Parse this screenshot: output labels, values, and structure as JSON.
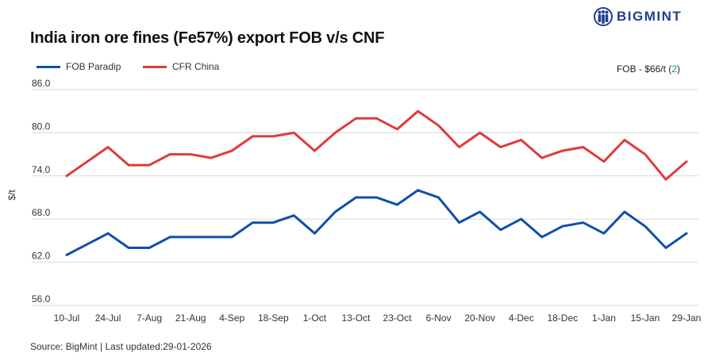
{
  "header": {
    "title": "India iron ore fines (Fe57%) export FOB v/s CNF",
    "brand": "BIGMINT"
  },
  "fob_note": {
    "prefix": "FOB - $66/t (",
    "change": "2",
    "suffix": ")"
  },
  "footer": {
    "source": "Source: BigMint | Last updated:29-01-2026"
  },
  "colors": {
    "fob": "#0f4fa8",
    "cfr": "#e03a3a",
    "grid": "#d9d9d9",
    "positive": "#1aa04a",
    "brand": "#1f3f8f"
  },
  "chart_data": {
    "type": "line",
    "title": "India iron ore fines (Fe57%) export FOB v/s CNF",
    "xlabel": "",
    "ylabel": "$/t",
    "ylim": [
      56,
      86
    ],
    "yticks": [
      "86.0",
      "80.0",
      "74.0",
      "68.0",
      "62.0",
      "56.0"
    ],
    "ytick_values": [
      86,
      80,
      74,
      68,
      62,
      56
    ],
    "xticks": [
      "10-Jul",
      "24-Jul",
      "7-Aug",
      "21-Aug",
      "4-Sep",
      "18-Sep",
      "1-Oct",
      "13-Oct",
      "23-Oct",
      "6-Nov",
      "20-Nov",
      "4-Dec",
      "18-Dec",
      "1-Jan",
      "15-Jan",
      "29-Jan"
    ],
    "grid": true,
    "legend": "top-left",
    "n_points": 31,
    "series": [
      {
        "name": "FOB Paradip",
        "color": "#0f4fa8",
        "values": [
          63,
          64.5,
          66,
          64,
          64,
          65.5,
          65.5,
          65.5,
          65.5,
          67.5,
          67.5,
          68.5,
          66,
          69,
          71,
          71,
          70,
          72,
          71,
          67.5,
          69,
          66.5,
          68,
          65.5,
          67,
          67.5,
          66,
          69,
          67,
          64,
          66
        ]
      },
      {
        "name": "CFR China",
        "color": "#e03a3a",
        "values": [
          74,
          76,
          78,
          75.5,
          75.5,
          77,
          77,
          76.5,
          77.5,
          79.5,
          79.5,
          80,
          77.5,
          80,
          82,
          82,
          80.5,
          83,
          81,
          78,
          80,
          78,
          79,
          76.5,
          77.5,
          78,
          76,
          79,
          77,
          73.5,
          76
        ]
      }
    ]
  }
}
